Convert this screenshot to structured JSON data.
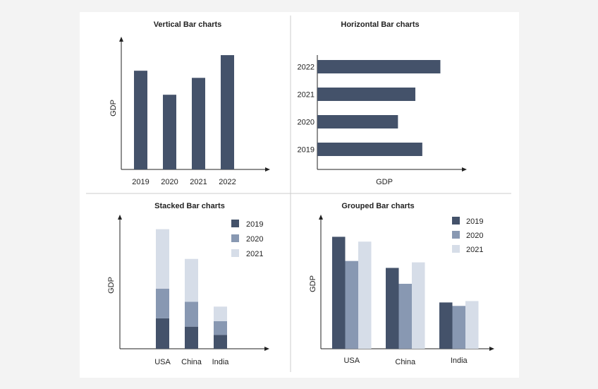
{
  "colors": {
    "c2019": "#44526a",
    "c2020": "#8898b2",
    "c2021": "#d6dde8",
    "axis": "#222222",
    "divider": "#cccccc"
  },
  "chart_data": [
    {
      "type": "bar",
      "orientation": "vertical",
      "title": "Vertical Bar charts",
      "xlabel": "",
      "ylabel": "GDP",
      "categories": [
        "2019",
        "2020",
        "2021",
        "2022"
      ],
      "values": [
        152,
        115,
        141,
        176
      ],
      "ylim": [
        0,
        200
      ]
    },
    {
      "type": "bar",
      "orientation": "horizontal",
      "title": "Horizontal Bar charts",
      "xlabel": "GDP",
      "ylabel": "",
      "categories": [
        "2019",
        "2020",
        "2021",
        "2022"
      ],
      "values": [
        151,
        116,
        141,
        177
      ],
      "xlim": [
        0,
        210
      ]
    },
    {
      "type": "bar",
      "stacked": true,
      "title": "Stacked Bar charts",
      "xlabel": "",
      "ylabel": "GDP",
      "categories": [
        "USA",
        "China",
        "India"
      ],
      "series": [
        {
          "name": "2019",
          "values": [
            44,
            32,
            20
          ]
        },
        {
          "name": "2020",
          "values": [
            43,
            36,
            20
          ]
        },
        {
          "name": "2021",
          "values": [
            86,
            62,
            21
          ]
        }
      ],
      "ylim": [
        0,
        190
      ],
      "legend": "top-right"
    },
    {
      "type": "bar",
      "grouped": true,
      "title": "Grouped Bar charts",
      "xlabel": "",
      "ylabel": "GDP",
      "categories": [
        "USA",
        "China",
        "India"
      ],
      "series": [
        {
          "name": "2019",
          "values": [
            162,
            117,
            67
          ]
        },
        {
          "name": "2020",
          "values": [
            127,
            94,
            62
          ]
        },
        {
          "name": "2021",
          "values": [
            155,
            125,
            69
          ]
        }
      ],
      "ylim": [
        0,
        190
      ],
      "legend": "top-right"
    }
  ]
}
